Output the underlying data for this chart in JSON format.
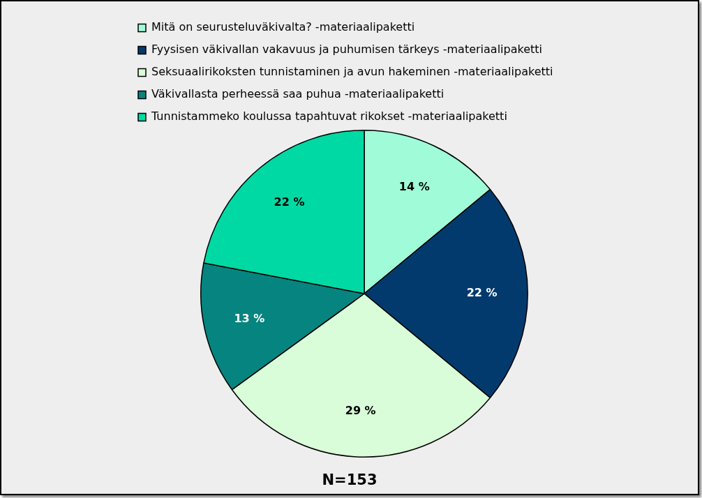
{
  "chart_data": {
    "type": "pie",
    "categories": [
      "Mitä on seurusteluväkivalta? -materiaalipaketti",
      "Fyysisen väkivallan vakavuus ja puhumisen tärkeys -materiaalipaketti",
      "Seksuaalirikoksten tunnistaminen ja avun hakeminen -materiaalipaketti",
      "Väkivallasta perheessä saa puhua -materiaalipaketti",
      "Tunnistammeko koulussa tapahtuvat rikokset -materiaalipaketti"
    ],
    "values": [
      14,
      22,
      29,
      13,
      22
    ],
    "colors": [
      "#a0fcd8",
      "#033a6e",
      "#d8fdd8",
      "#06847f",
      "#00d9a4"
    ],
    "value_labels": [
      "14 %",
      "22 %",
      "29 %",
      "13 %",
      "22 %"
    ],
    "legend": "top",
    "annotations": [
      "N=153"
    ]
  }
}
